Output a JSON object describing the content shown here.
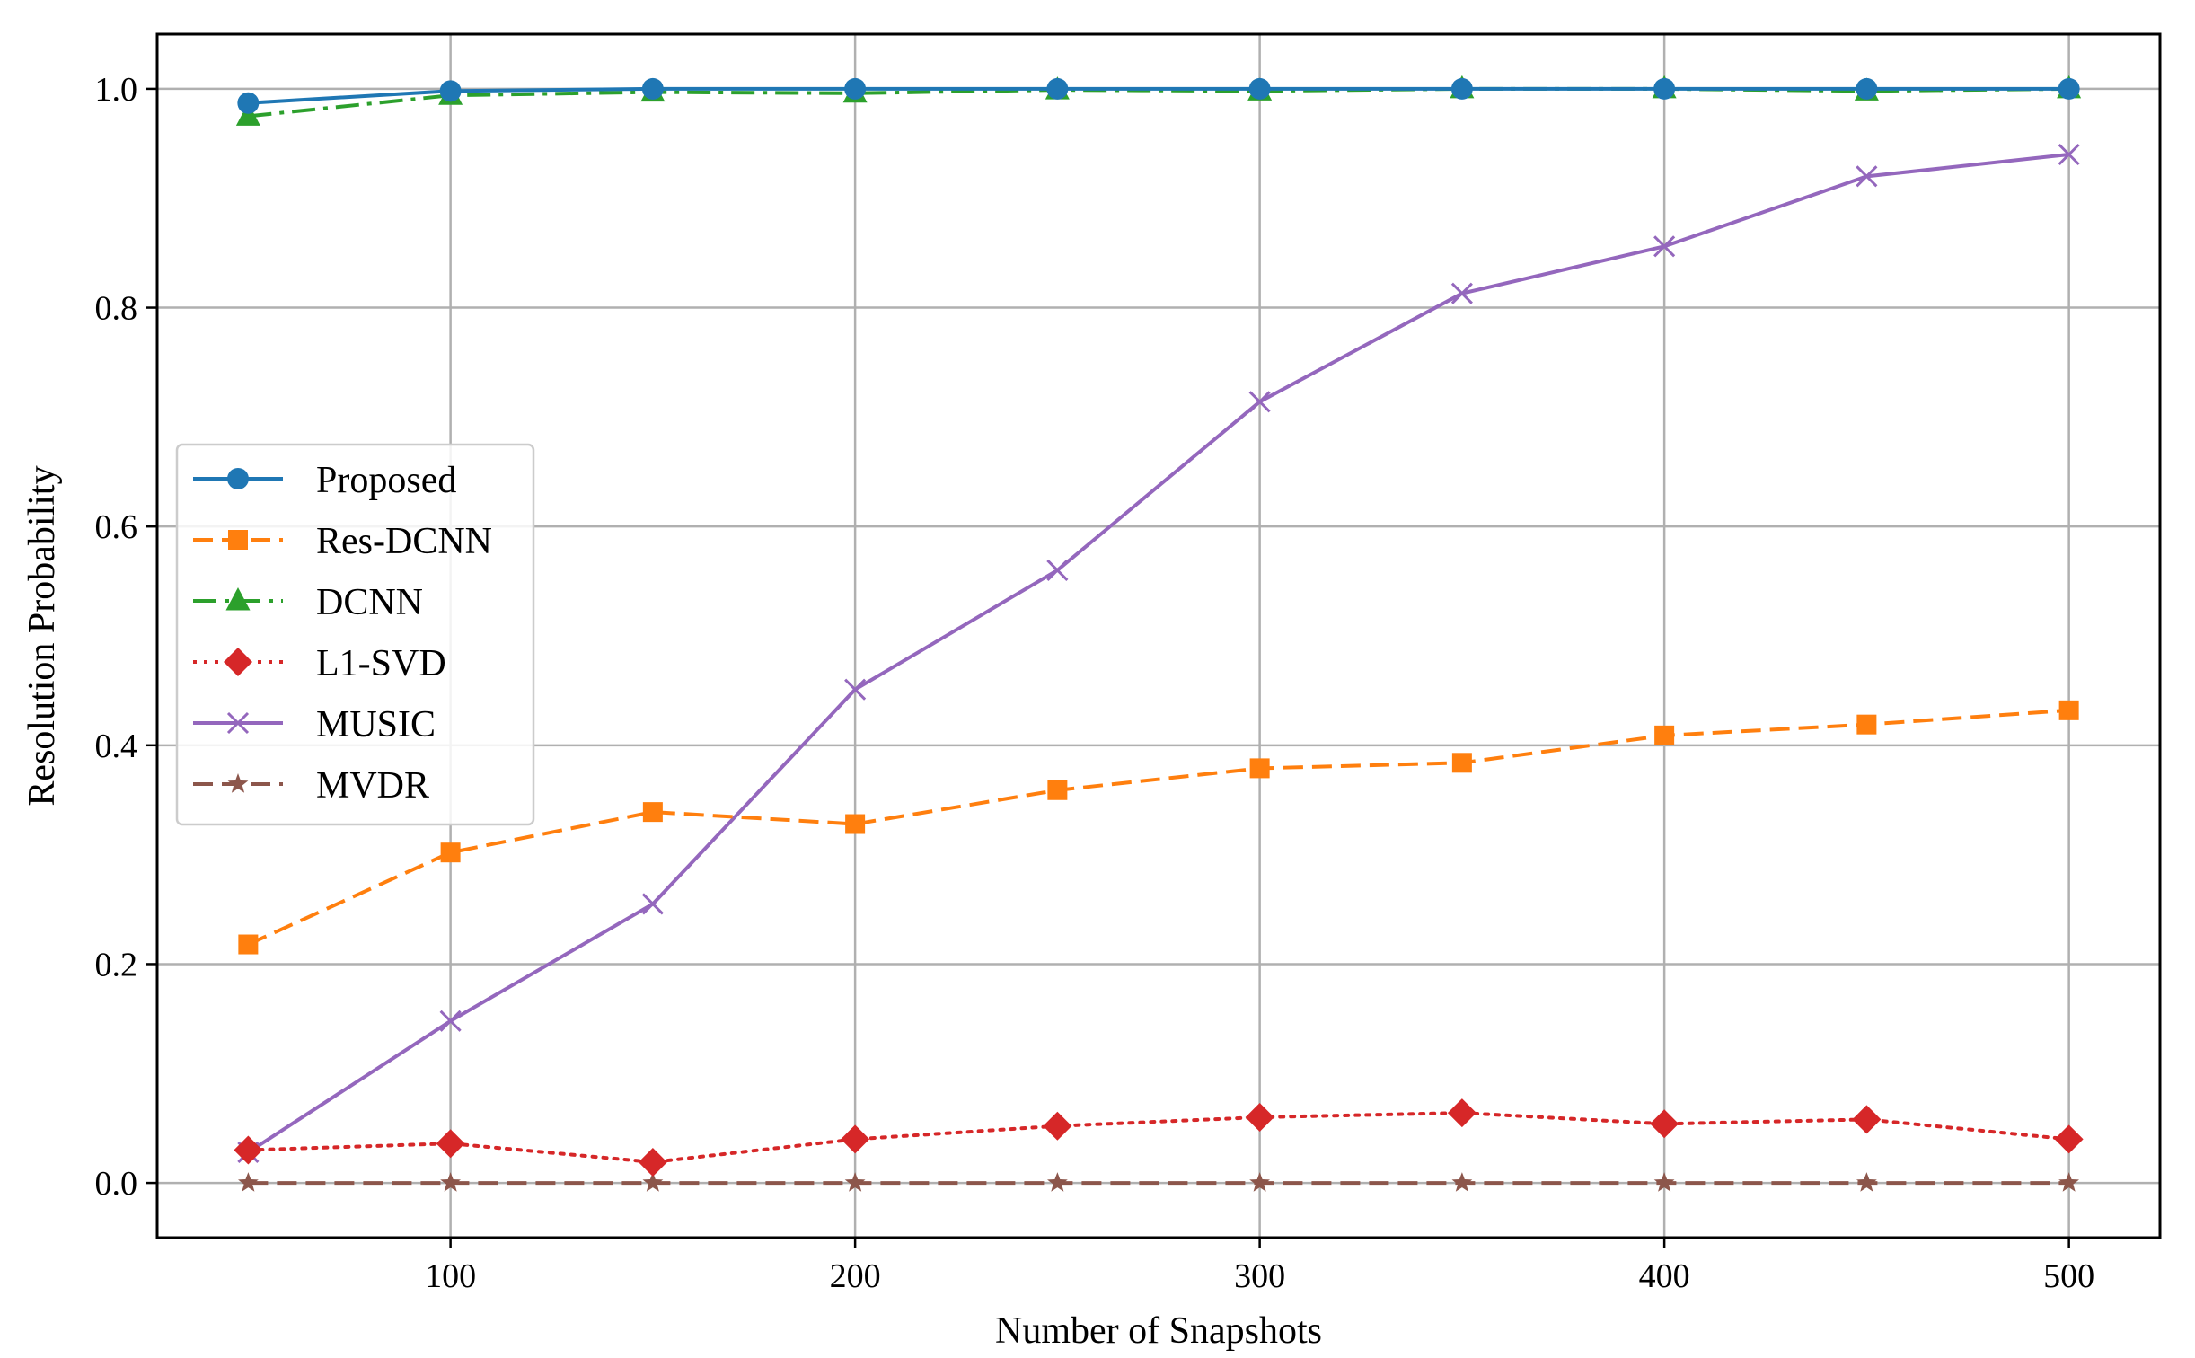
{
  "chart_data": {
    "type": "line",
    "title": "",
    "xlabel": "Number of Snapshots",
    "ylabel": "Resolution Probability",
    "x": [
      50,
      100,
      150,
      200,
      250,
      300,
      350,
      400,
      450,
      500
    ],
    "xlim": [
      27.5,
      522.5
    ],
    "ylim": [
      -0.05,
      1.05
    ],
    "xticks": [
      100,
      200,
      300,
      400,
      500
    ],
    "yticks": [
      0.0,
      0.2,
      0.4,
      0.6,
      0.8,
      1.0
    ],
    "xtick_labels": [
      "100",
      "200",
      "300",
      "400",
      "500"
    ],
    "ytick_labels": [
      "0.0",
      "0.2",
      "0.4",
      "0.6",
      "0.8",
      "1.0"
    ],
    "grid": true,
    "legend_position": "center-left",
    "series": [
      {
        "name": "Proposed",
        "color": "#1f77b4",
        "marker": "circle",
        "line": "solid",
        "values": [
          0.987,
          0.998,
          1.0,
          1.0,
          1.0,
          1.0,
          1.0,
          1.0,
          1.0,
          1.0
        ]
      },
      {
        "name": "Res-DCNN",
        "color": "#ff7f0e",
        "marker": "square",
        "line": "dashed",
        "values": [
          0.218,
          0.302,
          0.339,
          0.328,
          0.359,
          0.379,
          0.384,
          0.409,
          0.419,
          0.432
        ]
      },
      {
        "name": "DCNN",
        "color": "#2ca02c",
        "marker": "triangle",
        "line": "dashdot",
        "values": [
          0.975,
          0.994,
          0.997,
          0.996,
          0.999,
          0.998,
          1.0,
          1.0,
          0.998,
          1.0
        ]
      },
      {
        "name": "L1-SVD",
        "color": "#d62728",
        "marker": "diamond",
        "line": "dotted",
        "values": [
          0.03,
          0.036,
          0.019,
          0.04,
          0.052,
          0.06,
          0.064,
          0.054,
          0.058,
          0.04
        ]
      },
      {
        "name": "MUSIC",
        "color": "#9467bd",
        "marker": "x",
        "line": "solid",
        "values": [
          0.028,
          0.148,
          0.255,
          0.451,
          0.56,
          0.714,
          0.813,
          0.856,
          0.92,
          0.94
        ]
      },
      {
        "name": "MVDR",
        "color": "#8c564b",
        "marker": "star",
        "line": "dashed",
        "values": [
          0.0,
          0.0,
          0.0,
          0.0,
          0.0,
          0.0,
          0.0,
          0.0,
          0.0,
          0.0
        ]
      }
    ]
  }
}
